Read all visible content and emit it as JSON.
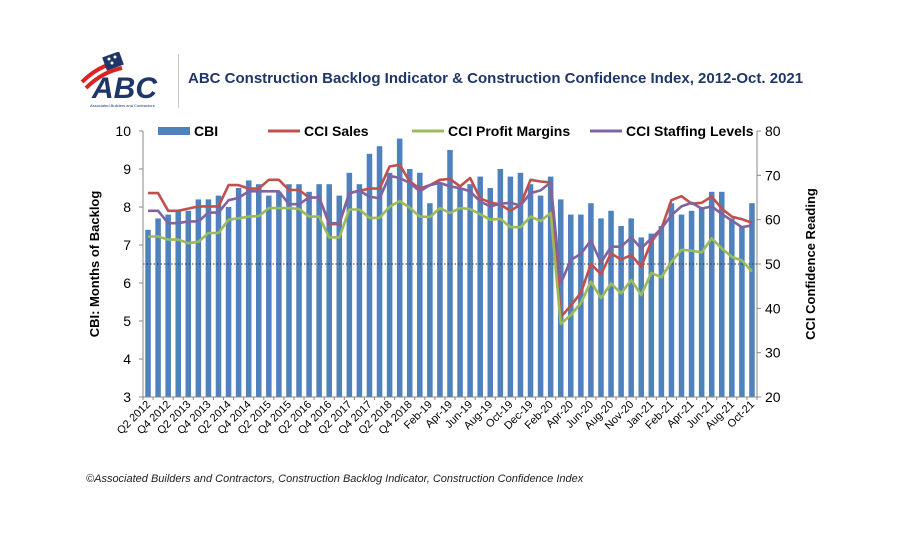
{
  "header": {
    "logo_text": "ABC",
    "logo_subtext": "Associated Builders and Contractors",
    "title": "ABC Construction Backlog Indicator & Construction Confidence Index, 2012-Oct. 2021"
  },
  "footnote": "©Associated Builders and Contractors, Construction Backlog Indicator, Construction Confidence Index",
  "chart_data": {
    "type": "bar+line",
    "title": "ABC Construction Backlog Indicator & Construction Confidence Index, 2012-Oct. 2021",
    "ylabel_left": "CBI: Months of Backlog",
    "ylabel_right": "CCI Confidence Reading",
    "ylim_left": [
      3,
      10
    ],
    "ylim_right": [
      20,
      80
    ],
    "yticks_left": [
      "3",
      "4",
      "5",
      "6",
      "7",
      "8",
      "9",
      "10"
    ],
    "yticks_right": [
      "20",
      "30",
      "40",
      "50",
      "60",
      "70",
      "80"
    ],
    "reference_line_right": 50,
    "legend_placement": "top",
    "grid": false,
    "x_tick_labels": [
      "Q2 2012",
      "Q4 2012",
      "Q2 2013",
      "Q4 2013",
      "Q2 2014",
      "Q4 2014",
      "Q2 2015",
      "Q4 2015",
      "Q2 2016",
      "Q4 2016",
      "Q2 2017",
      "Q4 2017",
      "Q2 2018",
      "Q4 2018",
      "Feb-19",
      "Apr-19",
      "Jun-19",
      "Aug-19",
      "Oct-19",
      "Dec-19",
      "Feb-20",
      "Apr-20",
      "Jun-20",
      "Aug-20",
      "Nov-20",
      "Jan-21",
      "Feb-21",
      "Apr-21",
      "Jun-21",
      "Aug-21",
      "Oct-21"
    ],
    "x_tick_label_every": 2,
    "colors": {
      "CBI": "#4f81bd",
      "CCI Sales": "#c0504d",
      "CCI Profit Margins": "#9bbb59",
      "CCI Staffing Levels": "#8064a2"
    },
    "series": [
      {
        "name": "CBI",
        "type": "bar",
        "axis": "left",
        "values": [
          7.4,
          7.7,
          7.8,
          7.9,
          7.9,
          8.2,
          8.2,
          8.3,
          8.0,
          8.5,
          8.7,
          8.6,
          8.3,
          8.4,
          8.6,
          8.6,
          8.4,
          8.6,
          8.6,
          8.3,
          8.9,
          8.6,
          9.4,
          9.6,
          8.9,
          9.8,
          9.0,
          8.9,
          8.1,
          8.6,
          9.5,
          8.5,
          8.6,
          8.8,
          8.5,
          9.0,
          8.8,
          8.9,
          8.6,
          8.3,
          8.8,
          8.2,
          7.8,
          7.8,
          8.1,
          7.7,
          7.9,
          7.5,
          7.7,
          7.2,
          7.3,
          7.5,
          8.1,
          7.8,
          7.9,
          8.0,
          8.4,
          8.4,
          7.7,
          7.5,
          8.1
        ]
      },
      {
        "name": "CCI Sales",
        "type": "line",
        "axis": "right",
        "values": [
          66,
          66,
          62,
          62,
          62.5,
          63,
          63,
          63,
          67.8,
          67.8,
          67,
          67,
          69,
          69,
          66.7,
          66.7,
          65,
          65,
          59,
          59,
          66,
          66.5,
          67,
          67,
          72,
          72.4,
          68.6,
          67,
          67.8,
          69,
          69.2,
          67.5,
          69.4,
          64.8,
          63.9,
          63.4,
          62,
          63.4,
          69,
          68.6,
          68.4,
          38,
          40.6,
          43.5,
          50,
          47.7,
          52.4,
          51,
          52,
          49.4,
          55,
          58,
          64.4,
          65.3,
          63.6,
          63.8,
          65.2,
          62.5,
          60.7,
          60.1,
          59.3
        ]
      },
      {
        "name": "CCI Profit Margins",
        "type": "line",
        "axis": "right",
        "values": [
          56.2,
          56.2,
          55.5,
          55.5,
          54.7,
          55,
          57,
          57,
          60,
          60.3,
          60.7,
          60.8,
          62.6,
          62.6,
          62.6,
          62.4,
          60.7,
          60.7,
          56,
          56,
          62.3,
          62.3,
          60.4,
          60.4,
          62.9,
          64.2,
          62.7,
          60.7,
          60.6,
          62.6,
          61.5,
          62.6,
          62.4,
          61.2,
          60,
          60.2,
          58.3,
          58.3,
          60.7,
          59.7,
          61.5,
          36.5,
          38.5,
          41.2,
          46,
          42.3,
          45.6,
          43.4,
          46.4,
          43,
          48,
          47,
          50.5,
          53.2,
          53,
          52.6,
          55.8,
          53.5,
          51.6,
          50.8,
          48.3
        ]
      },
      {
        "name": "CCI Staffing Levels",
        "type": "line",
        "axis": "right",
        "values": [
          62,
          62,
          59.2,
          59.2,
          59.6,
          59.6,
          61.6,
          61.6,
          64.4,
          64.9,
          66.4,
          66.4,
          66.4,
          66.4,
          63.5,
          63.5,
          65,
          65,
          59.2,
          59.2,
          66,
          66.5,
          65.2,
          64.8,
          69.9,
          69.4,
          68.3,
          66.4,
          67.8,
          68.3,
          67.5,
          67.1,
          66.4,
          64.1,
          63,
          63.6,
          63.8,
          63.2,
          66,
          66.6,
          68.4,
          45.6,
          50.9,
          52.3,
          55.3,
          50.3,
          53.9,
          53.9,
          56,
          53.5,
          55.8,
          58,
          61,
          63,
          63.8,
          62.5,
          63,
          61.3,
          59.8,
          58.3,
          58.7
        ]
      }
    ]
  }
}
